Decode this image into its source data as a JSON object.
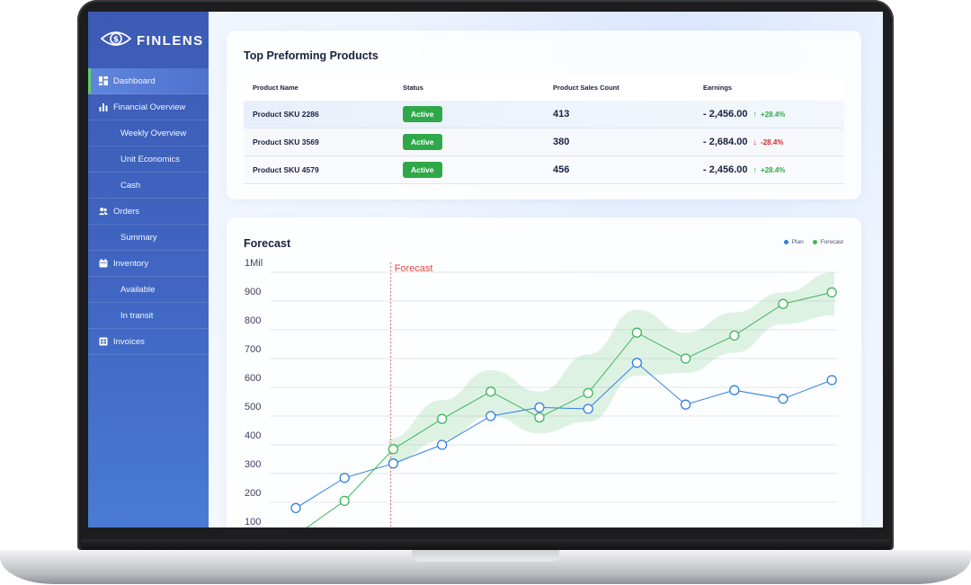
{
  "brand": {
    "name": "FINLENS",
    "logo_icon": "eye-dollar-icon"
  },
  "sidebar": {
    "items": [
      {
        "label": "Dashboard",
        "icon": "dashboard-icon",
        "level": "top",
        "active": true
      },
      {
        "label": "Financial Overview",
        "icon": "bar-chart-icon",
        "level": "top"
      },
      {
        "label": "Weekly Overview",
        "level": "sub"
      },
      {
        "label": "Unit Economics",
        "level": "sub"
      },
      {
        "label": "Cash",
        "level": "sub"
      },
      {
        "label": "Orders",
        "icon": "users-icon",
        "level": "top"
      },
      {
        "label": "Summary",
        "level": "sub"
      },
      {
        "label": "Inventory",
        "icon": "calendar-icon",
        "level": "top"
      },
      {
        "label": "Available",
        "level": "sub"
      },
      {
        "label": "In transit",
        "level": "sub"
      },
      {
        "label": "Invoices",
        "icon": "invoice-icon",
        "level": "top"
      }
    ]
  },
  "products": {
    "title": "Top Preforming Products",
    "columns": [
      "Product Name",
      "Status",
      "Product Sales Count",
      "Earnings"
    ],
    "rows": [
      {
        "name": "Product SKU 2286",
        "status": "Active",
        "count": "413",
        "earnings": "- 2,456.00",
        "delta": "+28.4%",
        "trend": "up"
      },
      {
        "name": "Product SKU 3569",
        "status": "Active",
        "count": "380",
        "earnings": "- 2,684.00",
        "delta": "-28.4%",
        "trend": "down"
      },
      {
        "name": "Product SKU 4579",
        "status": "Active",
        "count": "456",
        "earnings": "- 2,456.00",
        "delta": "+28.4%",
        "trend": "up"
      }
    ],
    "colors": {
      "active_badge": "#2fa84a",
      "up": "#2fa84a",
      "down": "#d62b2b"
    }
  },
  "forecast": {
    "title": "Forecast",
    "legend": [
      {
        "name": "Plan",
        "color": "#2f7fe0"
      },
      {
        "name": "Forecast",
        "color": "#3fb55a"
      }
    ],
    "marker_label": "Forecast"
  },
  "chart_data": {
    "type": "line",
    "title": "Forecast",
    "x": [
      1,
      2,
      3,
      4,
      5,
      6,
      7,
      8,
      9,
      10,
      11,
      12
    ],
    "series": [
      {
        "name": "Plan",
        "color": "#2f7fe0",
        "values": [
          180,
          285,
          335,
          400,
          500,
          530,
          525,
          685,
          540,
          590,
          560,
          625
        ]
      },
      {
        "name": "Forecast",
        "color": "#3fb55a",
        "values": [
          85,
          205,
          385,
          490,
          585,
          495,
          580,
          790,
          700,
          780,
          890,
          930
        ]
      }
    ],
    "confidence_band": {
      "series": "Forecast",
      "x": [
        2.9,
        4,
        5,
        6,
        7,
        8,
        9,
        10,
        11,
        12.05
      ],
      "upper": [
        420,
        555,
        660,
        585,
        715,
        870,
        790,
        860,
        930,
        1000
      ],
      "lower": [
        330,
        415,
        500,
        440,
        480,
        640,
        650,
        720,
        820,
        850
      ]
    },
    "y_ticks": [
      "1Mil",
      "900",
      "800",
      "700",
      "600",
      "500",
      "400",
      "300",
      "200",
      "100"
    ],
    "y_tick_values": [
      1000,
      900,
      800,
      700,
      600,
      500,
      400,
      300,
      200,
      100
    ],
    "ylim": [
      100,
      1000
    ],
    "forecast_start_x": 2.95,
    "grid": true,
    "legend_position": "top-right"
  }
}
